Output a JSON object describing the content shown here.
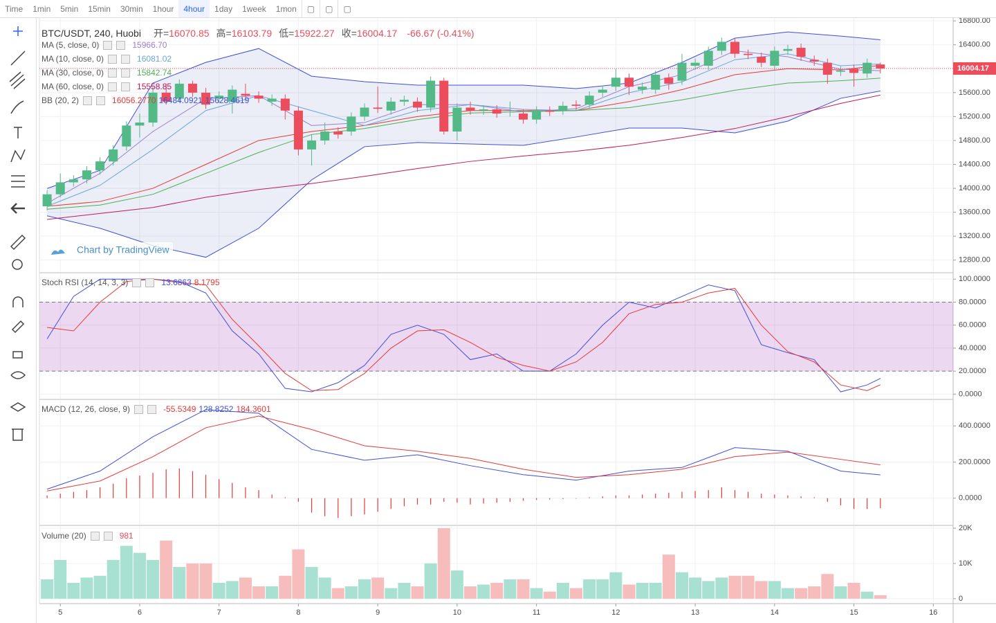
{
  "toolbar": {
    "items": [
      "Time",
      "1min",
      "5min",
      "15min",
      "30min",
      "1hour",
      "4hour",
      "1day",
      "1week",
      "1mon"
    ],
    "active": 6
  },
  "watermark": "Chart by TradingView",
  "chart_data": [
    {
      "type": "candlestick",
      "title": "BTC/USDT, 240, Huobi",
      "open_label": "开=",
      "high_label": "高=",
      "low_label": "低=",
      "close_label": "收=",
      "change": "-66.67 (-0.41%)",
      "up_color": "#53b987",
      "down_color": "#eb4d5c",
      "open": [
        13700,
        13900,
        14100,
        14150,
        14300,
        14450,
        14700,
        15050,
        15100,
        15600,
        15500,
        15750,
        15600,
        15500,
        15450,
        15580,
        15550,
        15450,
        15500,
        15300,
        14650,
        14800,
        14950,
        14950,
        15200,
        15350,
        15300,
        15450,
        15450,
        15350,
        15800,
        14950,
        15350,
        15300,
        15320,
        15270,
        15250,
        15150,
        15300,
        15300,
        15400,
        15400,
        15600,
        15700,
        15850,
        15650,
        15650,
        15850,
        15800,
        16050,
        16050,
        16300,
        16450,
        16250,
        16200,
        16050,
        16300,
        16350,
        16150,
        16100,
        15950,
        16000,
        15920,
        16070.85
      ],
      "high": [
        13970,
        14250,
        14220,
        14370,
        14520,
        14720,
        15120,
        15250,
        15700,
        15750,
        15820,
        15800,
        15680,
        15620,
        15720,
        15750,
        15620,
        15570,
        15570,
        15370,
        14900,
        15100,
        15020,
        15270,
        15420,
        15700,
        15520,
        15550,
        15520,
        15870,
        15850,
        15420,
        15450,
        15390,
        15390,
        15450,
        15320,
        15370,
        15370,
        15450,
        15470,
        15620,
        15720,
        16000,
        15920,
        15770,
        15970,
        15920,
        16250,
        16170,
        16370,
        16520,
        16520,
        16320,
        16270,
        16370,
        16400,
        16420,
        16220,
        16170,
        16040,
        16070,
        16170,
        16103.79
      ],
      "low": [
        13630,
        13850,
        14030,
        14080,
        14230,
        14380,
        14630,
        14850,
        15030,
        15400,
        15430,
        15530,
        15330,
        15430,
        15250,
        15480,
        15430,
        15380,
        15150,
        14550,
        14380,
        14730,
        14830,
        14880,
        15130,
        15260,
        15230,
        15380,
        15280,
        15280,
        14900,
        14800,
        15230,
        15230,
        15180,
        15200,
        15080,
        15080,
        15210,
        15230,
        15310,
        15330,
        15530,
        15630,
        15560,
        15580,
        15580,
        15650,
        15730,
        15980,
        15980,
        16230,
        16180,
        16160,
        16030,
        15980,
        16230,
        16130,
        16050,
        15750,
        15880,
        15700,
        15850,
        15922.27
      ],
      "close": [
        13900,
        14100,
        14150,
        14300,
        14450,
        14650,
        15050,
        15100,
        15600,
        15450,
        15750,
        15600,
        15400,
        15550,
        15650,
        15550,
        15500,
        15500,
        15300,
        14650,
        14800,
        14950,
        14900,
        15200,
        15350,
        15330,
        15450,
        15480,
        15350,
        15800,
        14950,
        15350,
        15300,
        15320,
        15250,
        15280,
        15150,
        15300,
        15280,
        15380,
        15380,
        15550,
        15650,
        15850,
        15700,
        15700,
        15900,
        15750,
        16100,
        16100,
        16300,
        16450,
        16250,
        16230,
        16100,
        16300,
        16330,
        16200,
        16120,
        15900,
        15970,
        15930,
        16100,
        16004.17
      ],
      "series": [
        {
          "name": "MA (5, close, 0)",
          "color": "#9c7fd0",
          "last_label": "15966.70",
          "x": [
            0,
            4,
            8,
            12,
            16,
            20,
            24,
            28,
            32,
            36,
            40,
            44,
            48,
            52,
            56,
            60,
            63
          ],
          "values": [
            13750,
            14250,
            14950,
            15500,
            15550,
            15050,
            15100,
            15400,
            15400,
            15280,
            15330,
            15700,
            15900,
            16300,
            16200,
            15990,
            15966.7
          ]
        },
        {
          "name": "MA (10, close, 0)",
          "color": "#6aa5d8",
          "last_label": "16081.02",
          "x": [
            0,
            4,
            8,
            12,
            16,
            20,
            24,
            28,
            32,
            36,
            40,
            44,
            48,
            52,
            56,
            60,
            63
          ],
          "values": [
            13700,
            14050,
            14650,
            15300,
            15550,
            15300,
            15050,
            15300,
            15400,
            15320,
            15300,
            15600,
            15780,
            16150,
            16250,
            16050,
            16081.02
          ]
        },
        {
          "name": "MA (30, close, 0)",
          "color": "#4caf50",
          "last_label": "15842.74",
          "x": [
            0,
            4,
            8,
            12,
            16,
            20,
            24,
            28,
            32,
            36,
            40,
            44,
            48,
            52,
            56,
            60,
            63
          ],
          "values": [
            13650,
            13720,
            13900,
            14250,
            14600,
            14900,
            15000,
            15150,
            15260,
            15280,
            15300,
            15350,
            15480,
            15640,
            15760,
            15800,
            15842.74
          ]
        },
        {
          "name": "MA (60, close, 0)",
          "color": "#c2185b",
          "last_label": "15558.85",
          "x": [
            0,
            4,
            8,
            12,
            16,
            20,
            24,
            28,
            32,
            36,
            40,
            44,
            48,
            52,
            56,
            60,
            63
          ],
          "values": [
            13480,
            13580,
            13680,
            13850,
            13980,
            14080,
            14200,
            14330,
            14450,
            14540,
            14620,
            14720,
            14850,
            15000,
            15200,
            15420,
            15558.85
          ]
        }
      ],
      "bands": {
        "name": "BB (20, 2)",
        "fill": "#5c6bc0",
        "x": [
          0,
          4,
          8,
          12,
          16,
          20,
          24,
          28,
          32,
          36,
          40,
          44,
          48,
          52,
          56,
          60,
          63
        ],
        "basis": {
          "color": "#e53935",
          "last_label": "16056.2770",
          "values": [
            13700,
            13780,
            14000,
            14400,
            14800,
            14950,
            15050,
            15200,
            15300,
            15300,
            15300,
            15450,
            15650,
            15900,
            16000,
            15980,
            16056.277
          ]
        },
        "upper": {
          "color": "#3f4fd8",
          "last_label": "16484.0921",
          "values": [
            13998,
            14300,
            15760,
            16106,
            16338,
            15875,
            15783,
            15725,
            15725,
            15725,
            15667,
            15760,
            16106,
            16511,
            16615,
            16546,
            16484.0921
          ]
        },
        "lower": {
          "color": "#3f4fd8",
          "last_label": "15628.4619",
          "values": [
            13540,
            13332,
            13043,
            12847,
            13332,
            14141,
            14696,
            14766,
            14742,
            14719,
            14858,
            15008,
            15008,
            14927,
            15124,
            15505,
            15628.4619
          ]
        }
      },
      "ylim": [
        12600,
        16860
      ],
      "yticks": [
        {
          "value": 12800,
          "label": "12800.00"
        },
        {
          "value": 13200,
          "label": "13200.00"
        },
        {
          "value": 13600,
          "label": "13600.00"
        },
        {
          "value": 14000,
          "label": "14000.00"
        },
        {
          "value": 14400,
          "label": "14400.00"
        },
        {
          "value": 14800,
          "label": "14800.00"
        },
        {
          "value": 15200,
          "label": "15200.00"
        },
        {
          "value": 15600,
          "label": "15600.00"
        },
        {
          "value": 16000,
          "label": "16000.00"
        },
        {
          "value": 16400,
          "label": "16400.00"
        },
        {
          "value": 16800,
          "label": "16800.00"
        }
      ],
      "grid": true
    },
    {
      "type": "line",
      "title": "Stoch RSI (14, 14, 3, 3)",
      "band": [
        20,
        80
      ],
      "band_color": "#9c27b0",
      "x": [
        0,
        2,
        4,
        6,
        8,
        10,
        12,
        14,
        16,
        18,
        20,
        22,
        24,
        26,
        28,
        30,
        32,
        34,
        36,
        38,
        40,
        42,
        44,
        46,
        48,
        50,
        52,
        54,
        56,
        58,
        60,
        62,
        63
      ],
      "series": [
        {
          "name": "K",
          "color": "#3f4fd8",
          "values": [
            48,
            85,
            100,
            100,
            100,
            98,
            88,
            55,
            35,
            5,
            2,
            10,
            25,
            52,
            60,
            52,
            30,
            35,
            20,
            20,
            35,
            60,
            80,
            75,
            85,
            95,
            90,
            43,
            36,
            30,
            2,
            8,
            13.6863
          ]
        },
        {
          "name": "D",
          "color": "#e53935",
          "values": [
            58,
            55,
            80,
            98,
            100,
            97,
            95,
            65,
            42,
            18,
            3,
            4,
            18,
            40,
            55,
            56,
            45,
            32,
            25,
            20,
            28,
            45,
            70,
            78,
            80,
            88,
            92,
            60,
            37,
            28,
            8,
            3,
            8.1795
          ]
        }
      ],
      "ylim": [
        -4,
        105
      ],
      "yticks": [
        {
          "value": 0,
          "label": "0.0000"
        },
        {
          "value": 20,
          "label": "20.0000"
        },
        {
          "value": 40,
          "label": "40.0000"
        },
        {
          "value": 60,
          "label": "60.0000"
        },
        {
          "value": 80,
          "label": "80.0000"
        },
        {
          "value": 100,
          "label": "100.0000"
        }
      ],
      "grid": true
    },
    {
      "type": "macd",
      "title": "MACD (12, 26, close, 9)",
      "histogram_color": "#e53935",
      "histogram": [
        15,
        25,
        35,
        45,
        60,
        80,
        110,
        125,
        140,
        160,
        165,
        150,
        130,
        105,
        85,
        60,
        45,
        20,
        5,
        -20,
        -80,
        -100,
        -110,
        -100,
        -90,
        -75,
        -60,
        -45,
        -35,
        -35,
        -20,
        -25,
        -35,
        -30,
        -25,
        -20,
        -15,
        -10,
        -8,
        -5,
        -3,
        5,
        10,
        15,
        15,
        20,
        25,
        30,
        35,
        40,
        45,
        60,
        45,
        35,
        25,
        20,
        15,
        10,
        5,
        -20,
        -40,
        -60,
        -60,
        -55.5349
      ],
      "x": [
        0,
        4,
        8,
        12,
        16,
        20,
        24,
        28,
        32,
        36,
        40,
        44,
        48,
        52,
        56,
        60,
        63
      ],
      "series": [
        {
          "name": "MACD",
          "color": "#3f4fd8",
          "values": [
            50,
            150,
            340,
            490,
            470,
            270,
            210,
            240,
            180,
            130,
            100,
            150,
            170,
            280,
            260,
            150,
            128.8252
          ]
        },
        {
          "name": "Signal",
          "color": "#e53935",
          "values": [
            40,
            95,
            230,
            390,
            455,
            380,
            290,
            260,
            220,
            160,
            115,
            130,
            160,
            230,
            255,
            215,
            184.3601
          ]
        }
      ],
      "ylim": [
        -147,
        543
      ],
      "yticks": [
        {
          "value": 0,
          "label": "0.0000"
        },
        {
          "value": 200,
          "label": "200.0000"
        },
        {
          "value": 400,
          "label": "400.0000"
        }
      ],
      "grid": true
    },
    {
      "type": "bar",
      "title": "Volume (20)",
      "up_color": "#a8e0d2",
      "down_color": "#f7bcbc",
      "values": [
        5500,
        11000,
        4500,
        6000,
        6500,
        11000,
        15000,
        13000,
        11000,
        16500,
        9000,
        10000,
        10000,
        4500,
        5000,
        6000,
        3500,
        3500,
        6500,
        14000,
        9000,
        6000,
        3000,
        3500,
        5500,
        6000,
        3000,
        4500,
        3500,
        10000,
        20000,
        8000,
        3500,
        4000,
        4500,
        5500,
        5500,
        3000,
        2000,
        4500,
        3000,
        5500,
        5500,
        7500,
        4000,
        4500,
        4500,
        12500,
        7500,
        6000,
        5000,
        6000,
        6500,
        6500,
        5000,
        5000,
        3000,
        3000,
        3500,
        7000,
        3500,
        4500,
        2000,
        981
      ],
      "ylim": [
        -1400,
        20600
      ],
      "yticks": [
        0,
        {
          "value": 10000,
          "label": "10K"
        },
        {
          "value": 20000,
          "label": "20K"
        }
      ],
      "xlim": [
        -0.58,
        68.5
      ],
      "xticks": [
        {
          "value": 1,
          "label": "5"
        },
        {
          "value": 7,
          "label": "6"
        },
        {
          "value": 13,
          "label": "7"
        },
        {
          "value": 19,
          "label": "8"
        },
        {
          "value": 25,
          "label": "9"
        },
        {
          "value": 31,
          "label": "10"
        },
        {
          "value": 37,
          "label": "11"
        },
        {
          "value": 43,
          "label": "12"
        },
        {
          "value": 49,
          "label": "13"
        },
        {
          "value": 55,
          "label": "14"
        },
        {
          "value": 61,
          "label": "15"
        },
        {
          "value": 67,
          "label": "16"
        }
      ],
      "grid": true
    }
  ]
}
